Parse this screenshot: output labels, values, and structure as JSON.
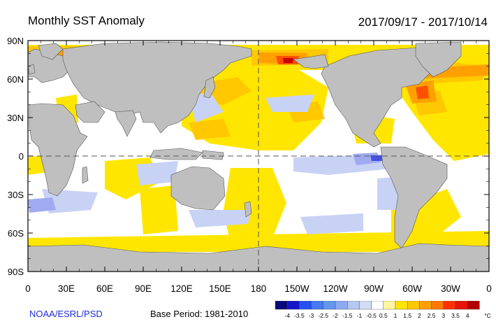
{
  "header": {
    "title": "Monthly SST Anomaly",
    "period": "2017/09/17 - 2017/10/14"
  },
  "lat_labels": [
    "90N",
    "60N",
    "30N",
    "0",
    "30S",
    "60S",
    "90S"
  ],
  "lon_labels": [
    "0",
    "30E",
    "60E",
    "90E",
    "120E",
    "150E",
    "180",
    "150W",
    "120W",
    "90W",
    "60W",
    "30W",
    "0"
  ],
  "footer": {
    "credit": "NOAA/ESRL/PSD",
    "base_period": "Base Period: 1981-2010"
  },
  "legend": {
    "unit": "°C",
    "ticks": [
      "-4",
      "-3.5",
      "-3",
      "-2.5",
      "-2",
      "-1.5",
      "-1",
      "-0.5",
      "0.5",
      "1",
      "1.5",
      "2",
      "2.5",
      "3",
      "3.5",
      "4"
    ],
    "colors": [
      "#0a0a78",
      "#1414c8",
      "#2850f0",
      "#4678f0",
      "#6496f0",
      "#8caaf0",
      "#b4c8f0",
      "#d2dcf5",
      "#ffffff",
      "#fff5a0",
      "#ffe600",
      "#ffc800",
      "#ffa000",
      "#ff7800",
      "#ff3200",
      "#e61400",
      "#b40000"
    ]
  },
  "map": {
    "land_color": "#bfbfbf",
    "ocean_color": "#ffffff",
    "warm_colors": [
      "#ffe600",
      "#ffc800",
      "#ffa000",
      "#ff5000",
      "#c80000"
    ],
    "cool_colors": [
      "#c8d2f5",
      "#a0aaf0",
      "#4650e6"
    ]
  }
}
